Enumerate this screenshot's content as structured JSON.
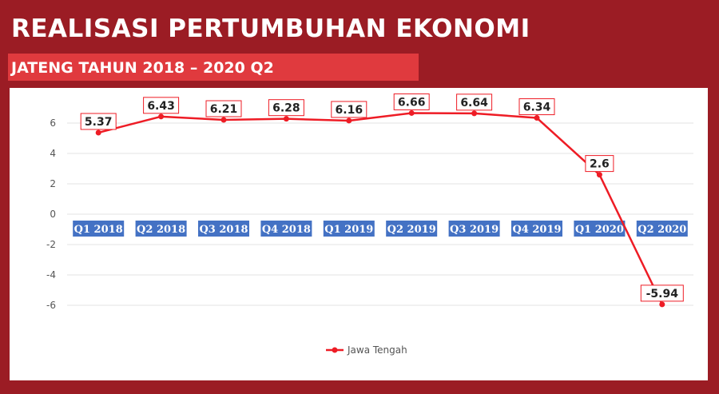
{
  "header": {
    "title": "REALISASI PERTUMBUHAN EKONOMI",
    "subtitle": "JATENG TAHUN 2018 – 2020 Q2"
  },
  "colors": {
    "background": "#9b1c24",
    "subtitle_bar": "#e03a3e",
    "series_line": "#ee1c25",
    "category_label_bg": "#4472c4",
    "gridline": "#e3e3e3"
  },
  "chart_data": {
    "type": "line",
    "title": "",
    "xlabel": "",
    "ylabel": "",
    "categories": [
      "Q1 2018",
      "Q2 2018",
      "Q3 2018",
      "Q4 2018",
      "Q1 2019",
      "Q2 2019",
      "Q3 2019",
      "Q4 2019",
      "Q1 2020",
      "Q2 2020"
    ],
    "series": [
      {
        "name": "Jawa Tengah",
        "values": [
          5.37,
          6.43,
          6.21,
          6.28,
          6.16,
          6.66,
          6.64,
          6.34,
          2.6,
          -5.94
        ],
        "labels": [
          "5.37",
          "6.43",
          "6.21",
          "6.28",
          "6.16",
          "6.66",
          "6.64",
          "6.34",
          "2.6",
          "-5.94"
        ]
      }
    ],
    "ylim": [
      -6,
      6
    ],
    "yticks": [
      6,
      4,
      2,
      0,
      -2,
      -4,
      -6
    ],
    "grid": true,
    "legend": "bottom-center",
    "category_labels_position": "on-zero-axis"
  }
}
